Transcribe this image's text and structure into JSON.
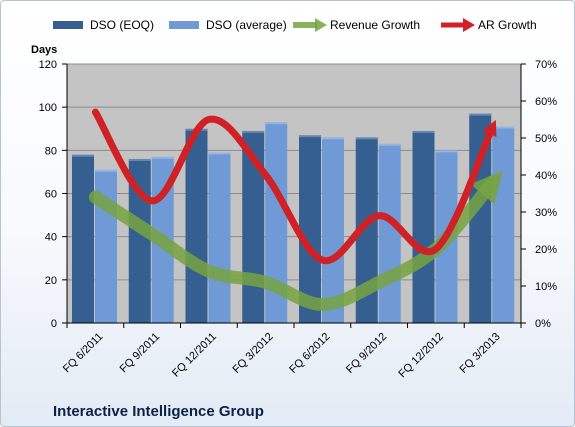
{
  "chart_data": {
    "type": "bar",
    "categories": [
      "FQ 6/2011",
      "FQ 9/2011",
      "FQ 12/2011",
      "FQ 3/2012",
      "FQ 6/2012",
      "FQ 9/2012",
      "FQ 12/2012",
      "FQ 3/2013"
    ],
    "series": [
      {
        "name": "DSO (EOQ)",
        "kind": "bar",
        "axis": "left",
        "color": "#365f91",
        "values": [
          78,
          76,
          90,
          89,
          87,
          86,
          89,
          97
        ]
      },
      {
        "name": "DSO (average)",
        "kind": "bar",
        "axis": "left",
        "color": "#6f9ad6",
        "values": [
          71,
          77,
          79,
          93,
          86,
          83,
          80,
          91
        ]
      },
      {
        "name": "Revenue Growth",
        "kind": "arrow-line",
        "axis": "right",
        "color": "#77a341",
        "values": [
          0.34,
          0.24,
          0.14,
          0.11,
          0.05,
          0.11,
          0.2,
          0.38
        ]
      },
      {
        "name": "AR Growth",
        "kind": "arrow-line",
        "axis": "right",
        "color": "#d02127",
        "values": [
          0.57,
          0.33,
          0.55,
          0.4,
          0.17,
          0.29,
          0.2,
          0.53
        ]
      }
    ],
    "y_left": {
      "title": "Days",
      "min": 0,
      "max": 120,
      "step": 20,
      "ticks": [
        "0",
        "20",
        "40",
        "60",
        "80",
        "100",
        "120"
      ]
    },
    "y_right": {
      "min": 0,
      "max": 0.7,
      "step": 0.1,
      "ticks": [
        "0%",
        "10%",
        "20%",
        "30%",
        "40%",
        "50%",
        "60%",
        "70%"
      ]
    },
    "grid": true,
    "legend_position": "top",
    "plot_background": "#c4c4c4",
    "footer_title": "Interactive Intelligence Group"
  }
}
